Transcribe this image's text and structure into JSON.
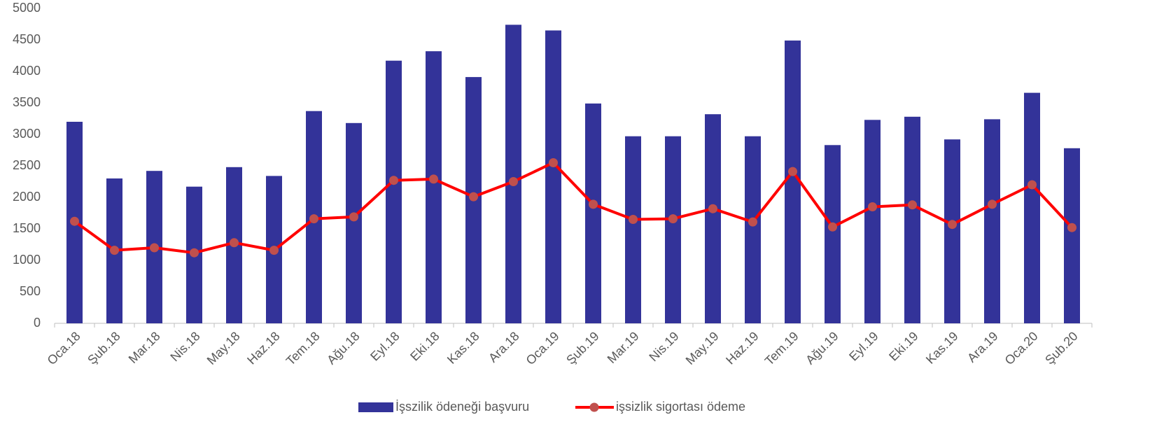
{
  "chart_data": {
    "type": "bar",
    "categories": [
      "Oca.18",
      "Şub.18",
      "Mar.18",
      "Nis.18",
      "May.18",
      "Haz.18",
      "Tem.18",
      "Ağu.18",
      "Eyl.18",
      "Eki.18",
      "Kas.18",
      "Ara.18",
      "Oca.19",
      "Şub.19",
      "Mar.19",
      "Nis.19",
      "May.19",
      "Haz.19",
      "Tem.19",
      "Ağu.19",
      "Eyl.19",
      "Eki.19",
      "Kas.19",
      "Ara.19",
      "Oca.20",
      "Şub.20"
    ],
    "series": [
      {
        "name": "İşszilik ödeneği başvuru",
        "type": "bar",
        "color": "#333399",
        "values": [
          3200,
          2300,
          2420,
          2170,
          2480,
          2340,
          3370,
          3180,
          4170,
          4320,
          3910,
          4740,
          4650,
          3490,
          2970,
          2970,
          3320,
          2970,
          4490,
          2830,
          3230,
          3280,
          2920,
          3240,
          3660,
          2780
        ]
      },
      {
        "name": "işsizlik sigortası ödeme",
        "type": "line",
        "color": "#ff0000",
        "marker_color": "#c0504d",
        "values": [
          1620,
          1160,
          1200,
          1120,
          1280,
          1160,
          1660,
          1690,
          2270,
          2290,
          2010,
          2250,
          2550,
          1890,
          1650,
          1660,
          1820,
          1610,
          2410,
          1530,
          1850,
          1880,
          1570,
          1890,
          2200,
          1520
        ]
      }
    ],
    "ylim": [
      0,
      5000
    ],
    "yticks": [
      0,
      500,
      1000,
      1500,
      2000,
      2500,
      3000,
      3500,
      4000,
      4500,
      5000
    ],
    "grid": false,
    "legend": "bottom"
  }
}
